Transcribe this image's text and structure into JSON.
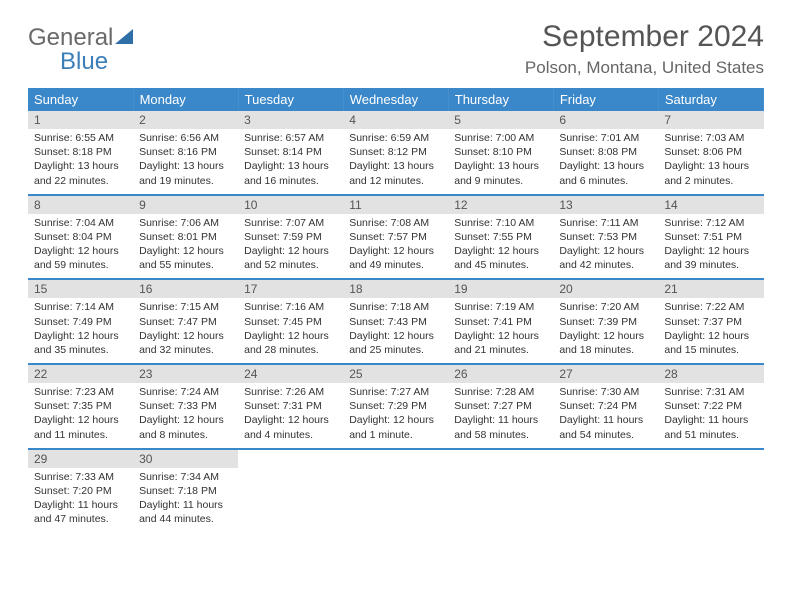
{
  "logo": {
    "part1": "General",
    "part2": "Blue"
  },
  "title": "September 2024",
  "location": "Polson, Montana, United States",
  "header_bg": "#3a87c9",
  "header_text": "#ffffff",
  "daynum_bg": "#e2e2e2",
  "row_border": "#3a87c9",
  "dayNames": [
    "Sunday",
    "Monday",
    "Tuesday",
    "Wednesday",
    "Thursday",
    "Friday",
    "Saturday"
  ],
  "weeks": [
    [
      {
        "n": "1",
        "sr": "Sunrise: 6:55 AM",
        "ss": "Sunset: 8:18 PM",
        "dl1": "Daylight: 13 hours",
        "dl2": "and 22 minutes."
      },
      {
        "n": "2",
        "sr": "Sunrise: 6:56 AM",
        "ss": "Sunset: 8:16 PM",
        "dl1": "Daylight: 13 hours",
        "dl2": "and 19 minutes."
      },
      {
        "n": "3",
        "sr": "Sunrise: 6:57 AM",
        "ss": "Sunset: 8:14 PM",
        "dl1": "Daylight: 13 hours",
        "dl2": "and 16 minutes."
      },
      {
        "n": "4",
        "sr": "Sunrise: 6:59 AM",
        "ss": "Sunset: 8:12 PM",
        "dl1": "Daylight: 13 hours",
        "dl2": "and 12 minutes."
      },
      {
        "n": "5",
        "sr": "Sunrise: 7:00 AM",
        "ss": "Sunset: 8:10 PM",
        "dl1": "Daylight: 13 hours",
        "dl2": "and 9 minutes."
      },
      {
        "n": "6",
        "sr": "Sunrise: 7:01 AM",
        "ss": "Sunset: 8:08 PM",
        "dl1": "Daylight: 13 hours",
        "dl2": "and 6 minutes."
      },
      {
        "n": "7",
        "sr": "Sunrise: 7:03 AM",
        "ss": "Sunset: 8:06 PM",
        "dl1": "Daylight: 13 hours",
        "dl2": "and 2 minutes."
      }
    ],
    [
      {
        "n": "8",
        "sr": "Sunrise: 7:04 AM",
        "ss": "Sunset: 8:04 PM",
        "dl1": "Daylight: 12 hours",
        "dl2": "and 59 minutes."
      },
      {
        "n": "9",
        "sr": "Sunrise: 7:06 AM",
        "ss": "Sunset: 8:01 PM",
        "dl1": "Daylight: 12 hours",
        "dl2": "and 55 minutes."
      },
      {
        "n": "10",
        "sr": "Sunrise: 7:07 AM",
        "ss": "Sunset: 7:59 PM",
        "dl1": "Daylight: 12 hours",
        "dl2": "and 52 minutes."
      },
      {
        "n": "11",
        "sr": "Sunrise: 7:08 AM",
        "ss": "Sunset: 7:57 PM",
        "dl1": "Daylight: 12 hours",
        "dl2": "and 49 minutes."
      },
      {
        "n": "12",
        "sr": "Sunrise: 7:10 AM",
        "ss": "Sunset: 7:55 PM",
        "dl1": "Daylight: 12 hours",
        "dl2": "and 45 minutes."
      },
      {
        "n": "13",
        "sr": "Sunrise: 7:11 AM",
        "ss": "Sunset: 7:53 PM",
        "dl1": "Daylight: 12 hours",
        "dl2": "and 42 minutes."
      },
      {
        "n": "14",
        "sr": "Sunrise: 7:12 AM",
        "ss": "Sunset: 7:51 PM",
        "dl1": "Daylight: 12 hours",
        "dl2": "and 39 minutes."
      }
    ],
    [
      {
        "n": "15",
        "sr": "Sunrise: 7:14 AM",
        "ss": "Sunset: 7:49 PM",
        "dl1": "Daylight: 12 hours",
        "dl2": "and 35 minutes."
      },
      {
        "n": "16",
        "sr": "Sunrise: 7:15 AM",
        "ss": "Sunset: 7:47 PM",
        "dl1": "Daylight: 12 hours",
        "dl2": "and 32 minutes."
      },
      {
        "n": "17",
        "sr": "Sunrise: 7:16 AM",
        "ss": "Sunset: 7:45 PM",
        "dl1": "Daylight: 12 hours",
        "dl2": "and 28 minutes."
      },
      {
        "n": "18",
        "sr": "Sunrise: 7:18 AM",
        "ss": "Sunset: 7:43 PM",
        "dl1": "Daylight: 12 hours",
        "dl2": "and 25 minutes."
      },
      {
        "n": "19",
        "sr": "Sunrise: 7:19 AM",
        "ss": "Sunset: 7:41 PM",
        "dl1": "Daylight: 12 hours",
        "dl2": "and 21 minutes."
      },
      {
        "n": "20",
        "sr": "Sunrise: 7:20 AM",
        "ss": "Sunset: 7:39 PM",
        "dl1": "Daylight: 12 hours",
        "dl2": "and 18 minutes."
      },
      {
        "n": "21",
        "sr": "Sunrise: 7:22 AM",
        "ss": "Sunset: 7:37 PM",
        "dl1": "Daylight: 12 hours",
        "dl2": "and 15 minutes."
      }
    ],
    [
      {
        "n": "22",
        "sr": "Sunrise: 7:23 AM",
        "ss": "Sunset: 7:35 PM",
        "dl1": "Daylight: 12 hours",
        "dl2": "and 11 minutes."
      },
      {
        "n": "23",
        "sr": "Sunrise: 7:24 AM",
        "ss": "Sunset: 7:33 PM",
        "dl1": "Daylight: 12 hours",
        "dl2": "and 8 minutes."
      },
      {
        "n": "24",
        "sr": "Sunrise: 7:26 AM",
        "ss": "Sunset: 7:31 PM",
        "dl1": "Daylight: 12 hours",
        "dl2": "and 4 minutes."
      },
      {
        "n": "25",
        "sr": "Sunrise: 7:27 AM",
        "ss": "Sunset: 7:29 PM",
        "dl1": "Daylight: 12 hours",
        "dl2": "and 1 minute."
      },
      {
        "n": "26",
        "sr": "Sunrise: 7:28 AM",
        "ss": "Sunset: 7:27 PM",
        "dl1": "Daylight: 11 hours",
        "dl2": "and 58 minutes."
      },
      {
        "n": "27",
        "sr": "Sunrise: 7:30 AM",
        "ss": "Sunset: 7:24 PM",
        "dl1": "Daylight: 11 hours",
        "dl2": "and 54 minutes."
      },
      {
        "n": "28",
        "sr": "Sunrise: 7:31 AM",
        "ss": "Sunset: 7:22 PM",
        "dl1": "Daylight: 11 hours",
        "dl2": "and 51 minutes."
      }
    ],
    [
      {
        "n": "29",
        "sr": "Sunrise: 7:33 AM",
        "ss": "Sunset: 7:20 PM",
        "dl1": "Daylight: 11 hours",
        "dl2": "and 47 minutes."
      },
      {
        "n": "30",
        "sr": "Sunrise: 7:34 AM",
        "ss": "Sunset: 7:18 PM",
        "dl1": "Daylight: 11 hours",
        "dl2": "and 44 minutes."
      },
      null,
      null,
      null,
      null,
      null
    ]
  ]
}
